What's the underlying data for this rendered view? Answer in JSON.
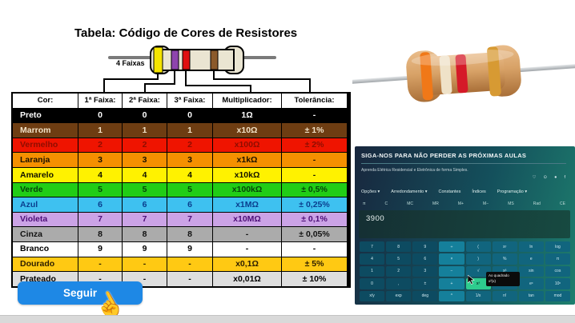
{
  "title": "Tabela: Código de Cores de Resistores",
  "diagram": {
    "bands_label": "4 Faixas",
    "band_hex": [
      "#F5E400",
      "#8E44AD",
      "#E01010",
      "#8B5A2B"
    ],
    "body_hex": "#EAE5D2",
    "wire_hex": "#7A7A7A"
  },
  "table": {
    "headers": [
      "Cor:",
      "1ª Faixa:",
      "2ª Faixa:",
      "3ª Faixa:",
      "Multiplicador:",
      "Tolerância:"
    ],
    "rows": [
      {
        "cells": [
          "Preto",
          "0",
          "0",
          "0",
          "1Ω",
          "-"
        ],
        "bg": "#000000",
        "fg": "#FFFFFF"
      },
      {
        "cells": [
          "Marrom",
          "1",
          "1",
          "1",
          "x10Ω",
          "± 1%"
        ],
        "bg": "#6E3D12",
        "fg": "#F2E3C8"
      },
      {
        "cells": [
          "Vermelho",
          "2",
          "2",
          "2",
          "x100Ω",
          "± 2%"
        ],
        "bg": "#EF1400",
        "fg": "#8F0D00"
      },
      {
        "cells": [
          "Laranja",
          "3",
          "3",
          "3",
          "x1kΩ",
          "-"
        ],
        "bg": "#F59000",
        "fg": "#1A1100"
      },
      {
        "cells": [
          "Amarelo",
          "4",
          "4",
          "4",
          "x10kΩ",
          "-"
        ],
        "bg": "#FFF200",
        "fg": "#141400"
      },
      {
        "cells": [
          "Verde",
          "5",
          "5",
          "5",
          "x100kΩ",
          "± 0,5%"
        ],
        "bg": "#21CD16",
        "fg": "#06430A"
      },
      {
        "cells": [
          "Azul",
          "6",
          "6",
          "6",
          "x1MΩ",
          "± 0,25%"
        ],
        "bg": "#3EC1F0",
        "fg": "#0A3F8F"
      },
      {
        "cells": [
          "Violeta",
          "7",
          "7",
          "7",
          "x10MΩ",
          "± 0,1%"
        ],
        "bg": "#CBA3E6",
        "fg": "#4C0E78"
      },
      {
        "cells": [
          "Cinza",
          "8",
          "8",
          "8",
          "-",
          "± 0,05%"
        ],
        "bg": "#ABABAB",
        "fg": "#111111"
      },
      {
        "cells": [
          "Branco",
          "9",
          "9",
          "9",
          "-",
          "-"
        ],
        "bg": "#FFFFFF",
        "fg": "#000000"
      },
      {
        "cells": [
          "Dourado",
          "-",
          "-",
          "-",
          "x0,1Ω",
          "± 5%"
        ],
        "bg": "#FFC913",
        "fg": "#2B1D00"
      },
      {
        "cells": [
          "Prateado",
          "-",
          "-",
          "-",
          "x0,01Ω",
          "± 10%"
        ],
        "bg": "#DEDEDE",
        "fg": "#000000"
      }
    ]
  },
  "follow_button": {
    "label": "Seguir",
    "color": "#1E88E5"
  },
  "photo": {
    "band_hex": [
      "#F07818",
      "#EFE2C8",
      "#D51A28",
      "#D79A33"
    ]
  },
  "panel": {
    "header": "SIGA-NOS PARA NÃO PERDER AS PRÓXIMAS AULAS",
    "subtitle": "Aprenda Elétrica Residencial e Eletrônica de forma Simples.",
    "social_icons": [
      "♡",
      "⊙",
      "●",
      "f"
    ],
    "menu": [
      "Opções ▾",
      "Arredondamento ▾",
      "Constantes",
      "Índices",
      "Programação ▾"
    ],
    "memory_row": [
      "π",
      "C",
      "MC",
      "MR",
      "M+",
      "M−",
      "MS",
      "Rad",
      "CE"
    ],
    "display": "3900",
    "keypad": [
      [
        "7",
        "8",
        "9",
        "÷",
        "(",
        "xʸ",
        "ln",
        "log"
      ],
      [
        "4",
        "5",
        "6",
        "×",
        ")",
        "%",
        "e",
        "π"
      ],
      [
        "1",
        "2",
        "3",
        "−",
        "√",
        "x³",
        "sin",
        "cos"
      ],
      [
        "0",
        ",",
        "±",
        "+",
        "x²",
        "∛",
        "eˣ",
        "10ˣ"
      ],
      [
        "x/y",
        "exp",
        "deg",
        "^",
        "1/x",
        "n!",
        "tan",
        "mod"
      ]
    ],
    "tooltip": {
      "line1": "Ao quadrado",
      "line2": "x²(x)"
    },
    "highlight_color": "#2ECC8E"
  }
}
